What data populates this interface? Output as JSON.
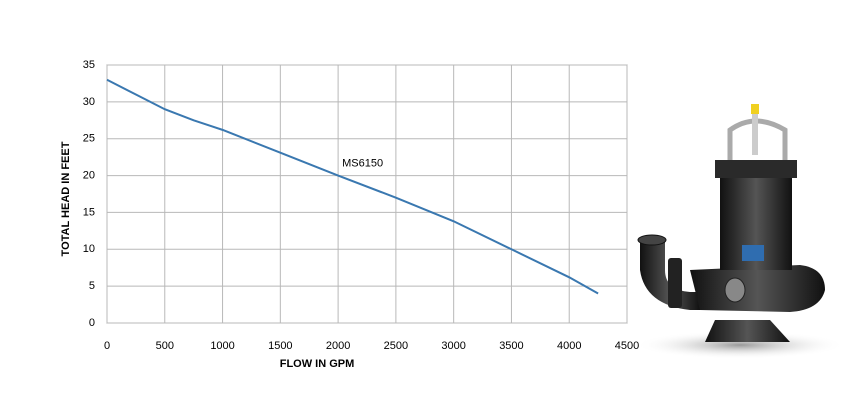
{
  "chart_data": {
    "type": "line",
    "x_label": "FLOW IN GPM",
    "y_label": "TOTAL  HEAD IN FEET",
    "x": [
      0,
      250,
      500,
      750,
      1000,
      1500,
      2000,
      2500,
      3000,
      3500,
      4000,
      4250
    ],
    "series": [
      {
        "name": "MS6150",
        "color": "#3a78b0",
        "values": [
          33,
          31,
          29,
          27.5,
          26.2,
          23.1,
          20,
          17,
          13.8,
          10,
          6.2,
          4
        ]
      }
    ],
    "xlim": [
      0,
      4500
    ],
    "xticks": [
      0,
      500,
      1000,
      1500,
      2000,
      2500,
      3000,
      3500,
      4000,
      4500
    ],
    "ylim": [
      0,
      35
    ],
    "yticks": [
      0,
      5,
      10,
      15,
      20,
      25,
      30,
      35
    ],
    "grid": true
  }
}
